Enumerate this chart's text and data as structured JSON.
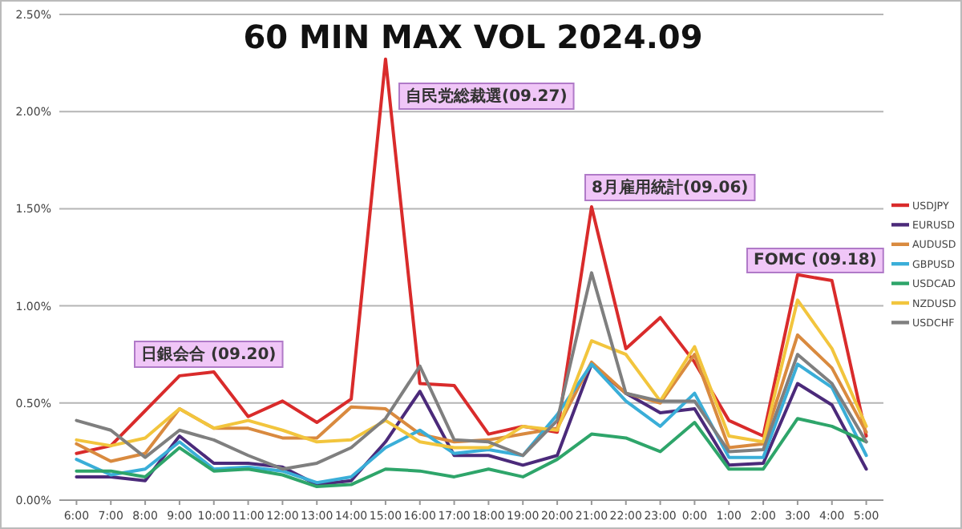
{
  "chart_data": {
    "type": "line",
    "title": "60 MIN MAX VOL 2024.09",
    "categories": [
      "6:00",
      "7:00",
      "8:00",
      "9:00",
      "10:00",
      "11:00",
      "12:00",
      "13:00",
      "14:00",
      "15:00",
      "16:00",
      "17:00",
      "18:00",
      "19:00",
      "20:00",
      "21:00",
      "22:00",
      "23:00",
      "0:00",
      "1:00",
      "2:00",
      "3:00",
      "4:00",
      "5:00"
    ],
    "series": [
      {
        "name": "USDJPY",
        "color": "#d92b2b",
        "values": [
          0.24,
          0.28,
          0.46,
          0.64,
          0.66,
          0.43,
          0.51,
          0.4,
          0.52,
          2.27,
          0.6,
          0.59,
          0.34,
          0.38,
          0.35,
          1.51,
          0.78,
          0.94,
          0.71,
          0.41,
          0.33,
          1.16,
          1.13,
          0.33
        ]
      },
      {
        "name": "EURUSD",
        "color": "#4b2a7a",
        "values": [
          0.12,
          0.12,
          0.1,
          0.33,
          0.19,
          0.19,
          0.17,
          0.08,
          0.1,
          0.3,
          0.56,
          0.23,
          0.23,
          0.18,
          0.23,
          0.7,
          0.55,
          0.45,
          0.47,
          0.18,
          0.19,
          0.6,
          0.49,
          0.16
        ]
      },
      {
        "name": "AUDUSD",
        "color": "#d98a3f",
        "values": [
          0.29,
          0.2,
          0.24,
          0.47,
          0.37,
          0.37,
          0.32,
          0.32,
          0.48,
          0.47,
          0.34,
          0.3,
          0.31,
          0.34,
          0.37,
          0.71,
          0.55,
          0.5,
          0.75,
          0.27,
          0.29,
          0.85,
          0.68,
          0.35
        ]
      },
      {
        "name": "GBPUSD",
        "color": "#3aaed8",
        "values": [
          0.21,
          0.13,
          0.16,
          0.3,
          0.16,
          0.17,
          0.15,
          0.09,
          0.12,
          0.27,
          0.36,
          0.24,
          0.26,
          0.23,
          0.44,
          0.7,
          0.51,
          0.38,
          0.55,
          0.22,
          0.22,
          0.7,
          0.58,
          0.23
        ]
      },
      {
        "name": "USDCAD",
        "color": "#2ea56a",
        "values": [
          0.15,
          0.15,
          0.12,
          0.27,
          0.15,
          0.16,
          0.13,
          0.07,
          0.08,
          0.16,
          0.15,
          0.12,
          0.16,
          0.12,
          0.21,
          0.34,
          0.32,
          0.25,
          0.4,
          0.16,
          0.16,
          0.42,
          0.38,
          0.3
        ]
      },
      {
        "name": "NZDUSD",
        "color": "#f2c53d",
        "values": [
          0.31,
          0.28,
          0.32,
          0.47,
          0.37,
          0.41,
          0.36,
          0.3,
          0.31,
          0.41,
          0.3,
          0.27,
          0.27,
          0.38,
          0.36,
          0.82,
          0.75,
          0.51,
          0.79,
          0.33,
          0.3,
          1.03,
          0.78,
          0.38
        ]
      },
      {
        "name": "USDCHF",
        "color": "#7f7f7f",
        "values": [
          0.41,
          0.36,
          0.22,
          0.36,
          0.31,
          0.23,
          0.16,
          0.19,
          0.27,
          0.42,
          0.69,
          0.31,
          0.3,
          0.23,
          0.41,
          1.17,
          0.55,
          0.51,
          0.51,
          0.25,
          0.26,
          0.75,
          0.6,
          0.3
        ]
      }
    ],
    "ylim": [
      0,
      2.5
    ],
    "yticks": [
      {
        "value": 0,
        "label": "0.00%"
      },
      {
        "value": 0.5,
        "label": "0.50%"
      },
      {
        "value": 1,
        "label": "1.00%"
      },
      {
        "value": 1.5,
        "label": "1.50%"
      },
      {
        "value": 2,
        "label": "2.00%"
      },
      {
        "value": 2.5,
        "label": "2.50%"
      }
    ],
    "grid": "y",
    "legend": "right",
    "annotations": [
      "日銀会合 (09.20)",
      "自民党総裁選(09.27)",
      "8月雇用統計(09.06)",
      "FOMC (09.18)"
    ]
  }
}
